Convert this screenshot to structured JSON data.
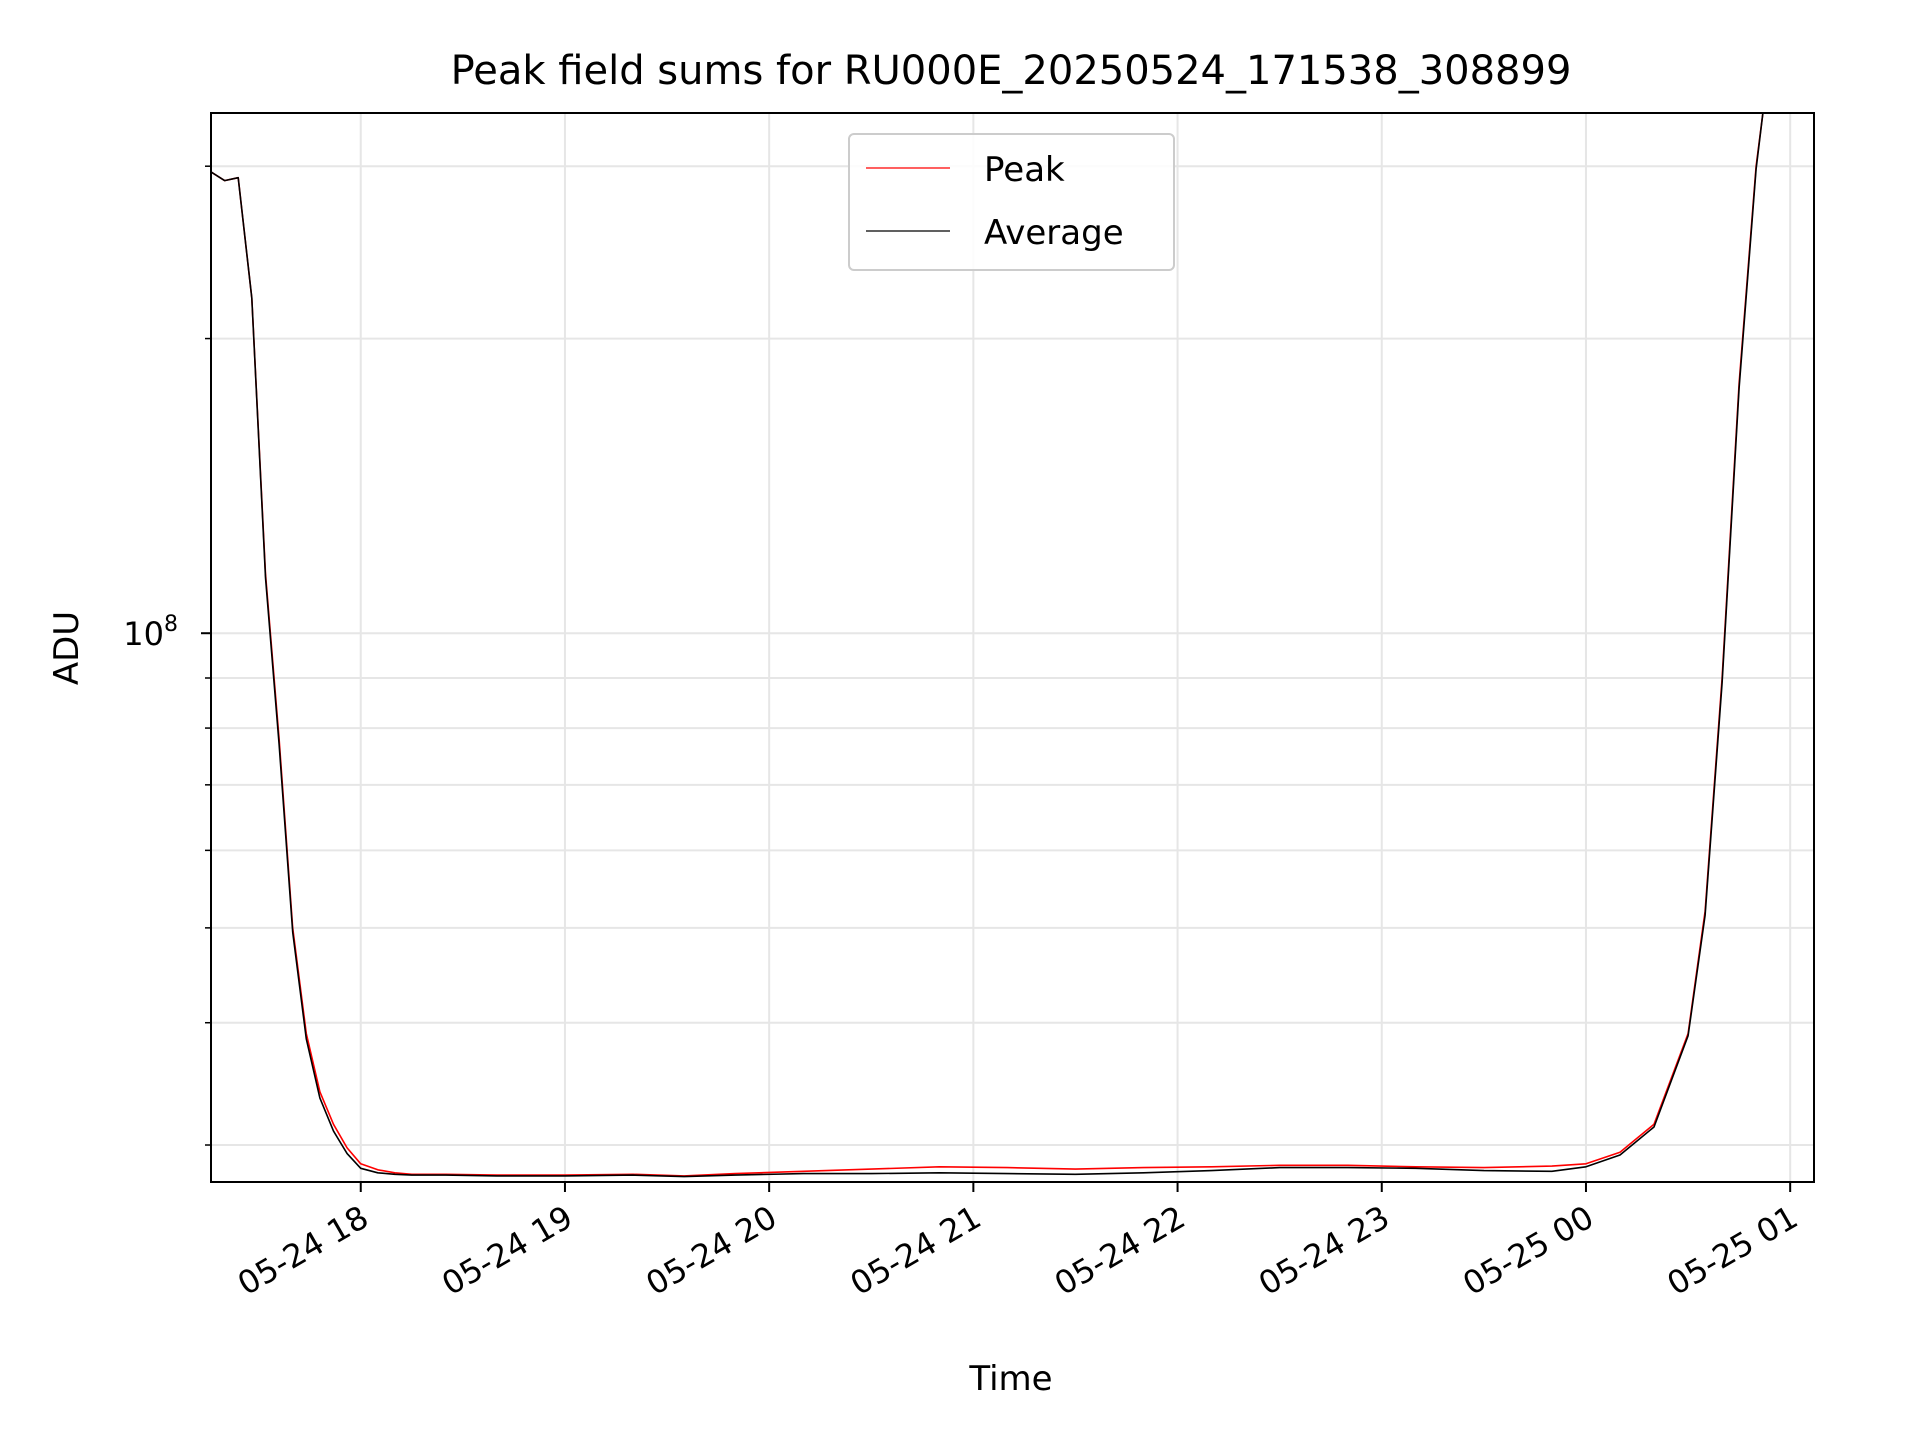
{
  "chart_data": {
    "type": "line",
    "title": "Peak field sums for RU000E_20250524_171538_308899",
    "xlabel": "Time",
    "ylabel": "ADU",
    "yscale": "log",
    "y_major_tick_label": {
      "base": "10",
      "exponent": "8",
      "value": 100000000
    },
    "x_tick_labels": [
      "05-24 18",
      "05-24 19",
      "05-24 20",
      "05-24 21",
      "05-24 22",
      "05-24 23",
      "05-25 00",
      "05-25 01"
    ],
    "x_ticks": [
      "2025-05-24 18:00",
      "2025-05-24 19:00",
      "2025-05-24 20:00",
      "2025-05-24 21:00",
      "2025-05-24 22:00",
      "2025-05-24 23:00",
      "2025-05-25 00:00",
      "2025-05-25 01:00"
    ],
    "xlim": [
      "2025-05-24 17:16",
      "2025-05-25 01:07"
    ],
    "ylim": [
      27500000,
      340000000
    ],
    "grid": true,
    "legend_position": "upper-center",
    "series": [
      {
        "name": "Peak",
        "color": "#ff0000",
        "x": [
          "2025-05-24 17:16",
          "2025-05-24 17:20",
          "2025-05-24 17:24",
          "2025-05-24 17:28",
          "2025-05-24 17:32",
          "2025-05-24 17:36",
          "2025-05-24 17:40",
          "2025-05-24 17:44",
          "2025-05-24 17:48",
          "2025-05-24 17:52",
          "2025-05-24 17:56",
          "2025-05-24 18:00",
          "2025-05-24 18:05",
          "2025-05-24 18:10",
          "2025-05-24 18:15",
          "2025-05-24 18:25",
          "2025-05-24 18:40",
          "2025-05-24 19:00",
          "2025-05-24 19:20",
          "2025-05-24 19:35",
          "2025-05-24 19:50",
          "2025-05-24 20:10",
          "2025-05-24 20:30",
          "2025-05-24 20:50",
          "2025-05-24 21:10",
          "2025-05-24 21:30",
          "2025-05-24 21:50",
          "2025-05-24 22:10",
          "2025-05-24 22:30",
          "2025-05-24 22:50",
          "2025-05-24 23:10",
          "2025-05-24 23:30",
          "2025-05-24 23:50",
          "2025-05-25 00:00",
          "2025-05-25 00:10",
          "2025-05-25 00:20",
          "2025-05-25 00:30",
          "2025-05-25 00:35",
          "2025-05-25 00:40",
          "2025-05-25 00:45",
          "2025-05-25 00:50",
          "2025-05-25 00:52"
        ],
        "y": [
          296000000,
          290000000,
          292000000,
          220000000,
          115000000,
          78000000,
          50000000,
          39000000,
          34000000,
          31500000,
          29800000,
          28700000,
          28300000,
          28100000,
          28000000,
          28000000,
          27950000,
          27950000,
          28000000,
          27900000,
          28050000,
          28200000,
          28350000,
          28500000,
          28450000,
          28350000,
          28450000,
          28500000,
          28600000,
          28600000,
          28500000,
          28450000,
          28550000,
          28700000,
          29500000,
          31500000,
          39000000,
          52000000,
          90000000,
          180000000,
          300000000,
          340000000
        ]
      },
      {
        "name": "Average",
        "color": "#000000",
        "x": [
          "2025-05-24 17:16",
          "2025-05-24 17:20",
          "2025-05-24 17:24",
          "2025-05-24 17:28",
          "2025-05-24 17:32",
          "2025-05-24 17:36",
          "2025-05-24 17:40",
          "2025-05-24 17:44",
          "2025-05-24 17:48",
          "2025-05-24 17:52",
          "2025-05-24 17:56",
          "2025-05-24 18:00",
          "2025-05-24 18:05",
          "2025-05-24 18:10",
          "2025-05-24 18:15",
          "2025-05-24 18:25",
          "2025-05-24 18:40",
          "2025-05-24 19:00",
          "2025-05-24 19:20",
          "2025-05-24 19:35",
          "2025-05-24 19:50",
          "2025-05-24 20:10",
          "2025-05-24 20:30",
          "2025-05-24 20:50",
          "2025-05-24 21:10",
          "2025-05-24 21:30",
          "2025-05-24 21:50",
          "2025-05-24 22:10",
          "2025-05-24 22:30",
          "2025-05-24 22:50",
          "2025-05-24 23:10",
          "2025-05-24 23:30",
          "2025-05-24 23:50",
          "2025-05-25 00:00",
          "2025-05-25 00:10",
          "2025-05-25 00:20",
          "2025-05-25 00:30",
          "2025-05-25 00:35",
          "2025-05-25 00:40",
          "2025-05-25 00:45",
          "2025-05-25 00:50",
          "2025-05-25 00:52"
        ],
        "y": [
          296000000,
          290000000,
          292000000,
          220000000,
          114000000,
          77000000,
          49500000,
          38500000,
          33500000,
          31000000,
          29400000,
          28400000,
          28100000,
          28000000,
          27950000,
          27950000,
          27900000,
          27900000,
          27950000,
          27850000,
          27950000,
          28050000,
          28050000,
          28100000,
          28050000,
          28000000,
          28100000,
          28250000,
          28450000,
          28450000,
          28400000,
          28250000,
          28200000,
          28500000,
          29300000,
          31300000,
          38800000,
          51500000,
          89000000,
          178000000,
          298000000,
          340000000
        ]
      }
    ]
  }
}
